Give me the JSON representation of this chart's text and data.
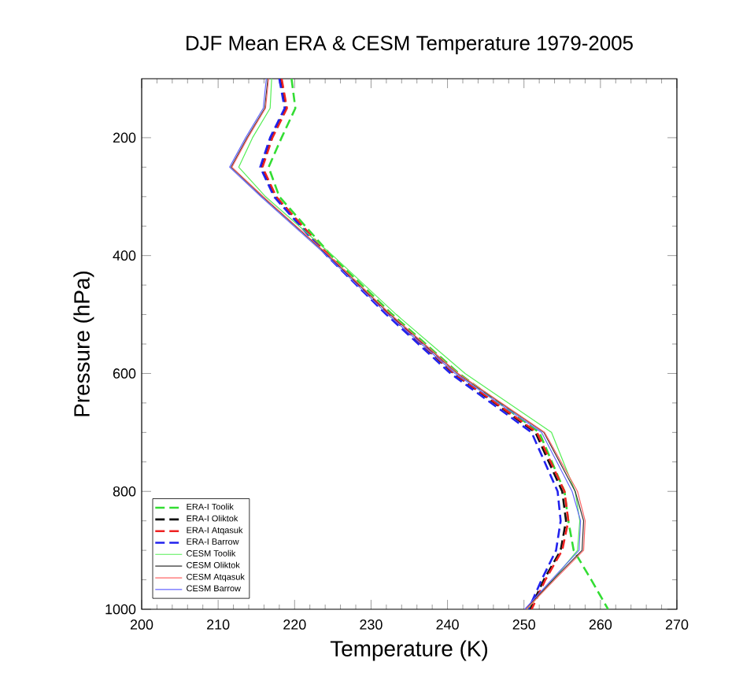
{
  "chart_data": {
    "type": "line",
    "title": "DJF Mean ERA & CESM Temperature 1979-2005",
    "xlabel": "Temperature (K)",
    "ylabel": "Pressure (hPa)",
    "xlim": [
      200,
      270
    ],
    "xticks": [
      200,
      210,
      220,
      230,
      240,
      250,
      260,
      270
    ],
    "ylim": [
      1000,
      100
    ],
    "yticks": [
      200,
      400,
      600,
      800,
      1000
    ],
    "grid": false,
    "legend": "bottom left",
    "marker": "none",
    "series": [
      {
        "name": "ERA-I Toolik",
        "color": "#33dd33",
        "line_style": "dashed",
        "x": [
          219.6,
          220.1,
          218.3,
          216.6,
          218.0,
          224.8,
          232.8,
          241.5,
          252.0,
          255.3,
          255.8,
          256.5,
          258.8,
          261.0
        ],
        "values": [
          100,
          150,
          200,
          250,
          300,
          400,
          500,
          600,
          700,
          800,
          850,
          900,
          950,
          1000
        ]
      },
      {
        "name": "ERA-I Oliktok",
        "color": "#111111",
        "line_style": "dashed",
        "x": [
          218.2,
          218.9,
          217.0,
          215.7,
          217.5,
          224.4,
          232.3,
          240.8,
          251.5,
          255.0,
          255.5,
          254.8,
          252.6,
          250.8
        ],
        "values": [
          100,
          150,
          200,
          250,
          300,
          400,
          500,
          600,
          700,
          800,
          850,
          900,
          950,
          1000
        ]
      },
      {
        "name": "ERA-I Atqasuk",
        "color": "#ee2222",
        "line_style": "dashed",
        "x": [
          218.3,
          219.0,
          217.1,
          215.8,
          217.6,
          224.5,
          232.4,
          240.9,
          251.7,
          255.3,
          255.8,
          255.0,
          252.8,
          251.0
        ],
        "values": [
          100,
          150,
          200,
          250,
          300,
          400,
          500,
          600,
          700,
          800,
          850,
          900,
          950,
          1000
        ]
      },
      {
        "name": "ERA-I Barrow",
        "color": "#2222ee",
        "line_style": "dashed",
        "x": [
          218.0,
          218.7,
          216.8,
          215.5,
          217.3,
          224.2,
          232.0,
          240.4,
          251.0,
          254.4,
          254.8,
          254.2,
          252.3,
          250.6
        ],
        "values": [
          100,
          150,
          200,
          250,
          300,
          400,
          500,
          600,
          700,
          800,
          850,
          900,
          950,
          1000
        ]
      },
      {
        "name": "CESM Toolik",
        "color": "#55ee55",
        "line_style": "solid",
        "x": [
          217.0,
          216.8,
          214.5,
          212.7,
          216.2,
          225.0,
          233.3,
          242.3,
          253.6,
          256.7,
          257.3,
          257.0,
          253.8,
          250.4
        ],
        "values": [
          100,
          150,
          200,
          250,
          300,
          400,
          500,
          600,
          700,
          800,
          850,
          900,
          950,
          1000
        ]
      },
      {
        "name": "CESM Oliktok",
        "color": "#333333",
        "line_style": "solid",
        "x": [
          216.5,
          216.1,
          213.8,
          211.7,
          215.8,
          224.4,
          232.5,
          241.3,
          252.6,
          256.7,
          257.8,
          257.6,
          253.8,
          250.2
        ],
        "values": [
          100,
          150,
          200,
          250,
          300,
          400,
          500,
          600,
          700,
          800,
          850,
          900,
          950,
          1000
        ]
      },
      {
        "name": "CESM Atqasuk",
        "color": "#ff6666",
        "line_style": "solid",
        "x": [
          216.6,
          216.2,
          213.9,
          211.8,
          215.9,
          224.5,
          232.6,
          241.4,
          252.7,
          257.0,
          258.0,
          257.8,
          254.0,
          250.3
        ],
        "values": [
          100,
          150,
          200,
          250,
          300,
          400,
          500,
          600,
          700,
          800,
          850,
          900,
          950,
          1000
        ]
      },
      {
        "name": "CESM Barrow",
        "color": "#6666ff",
        "line_style": "solid",
        "x": [
          216.3,
          215.9,
          213.6,
          211.5,
          215.6,
          224.2,
          232.2,
          241.0,
          252.3,
          256.3,
          257.4,
          257.2,
          253.6,
          250.1
        ],
        "values": [
          100,
          150,
          200,
          250,
          300,
          400,
          500,
          600,
          700,
          800,
          850,
          900,
          950,
          1000
        ]
      }
    ]
  }
}
